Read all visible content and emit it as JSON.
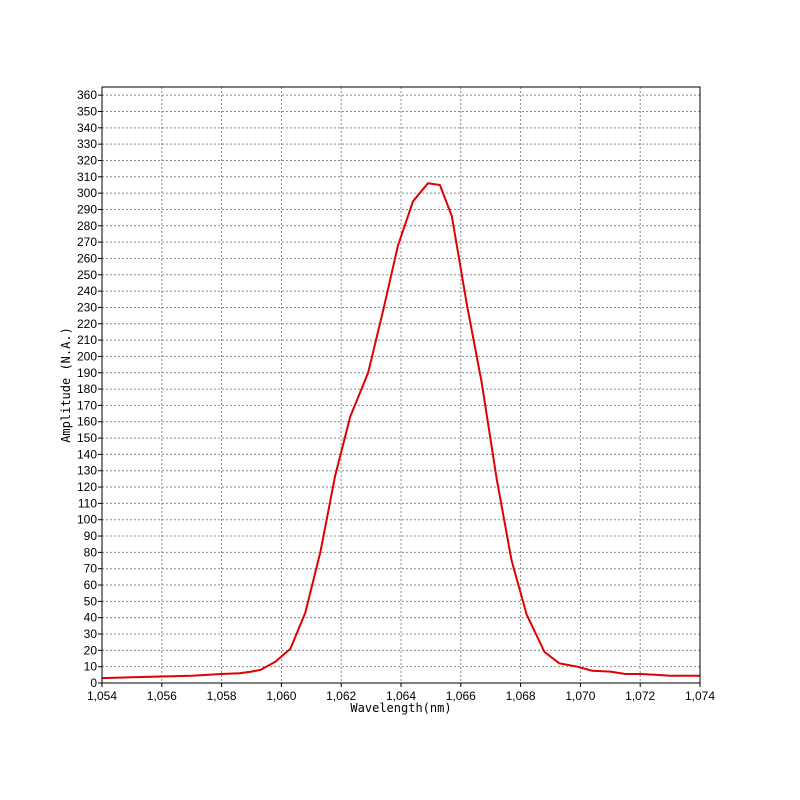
{
  "chart_data": {
    "type": "line",
    "title": "",
    "xlabel": "Wavelength(nm)",
    "ylabel": "Amplitude (N.A.)",
    "xlim": [
      1054,
      1074
    ],
    "ylim": [
      0,
      365
    ],
    "grid": true,
    "x_ticks": [
      1054,
      1056,
      1058,
      1060,
      1062,
      1064,
      1066,
      1068,
      1070,
      1072,
      1074
    ],
    "x_tick_labels": [
      "1,054",
      "1,056",
      "1,058",
      "1,060",
      "1,062",
      "1,064",
      "1,066",
      "1,068",
      "1,070",
      "1,072",
      "1,074"
    ],
    "y_ticks": [
      0,
      10,
      20,
      30,
      40,
      50,
      60,
      70,
      80,
      90,
      100,
      110,
      120,
      130,
      140,
      150,
      160,
      170,
      180,
      190,
      200,
      210,
      220,
      230,
      240,
      250,
      260,
      270,
      280,
      290,
      300,
      310,
      320,
      330,
      340,
      350,
      360
    ],
    "y_tick_labels": [
      "0",
      "10",
      "20",
      "30",
      "40",
      "50",
      "60",
      "70",
      "80",
      "90",
      "100",
      "110",
      "120",
      "130",
      "140",
      "150",
      "160",
      "170",
      "180",
      "190",
      "200",
      "210",
      "220",
      "230",
      "240",
      "250",
      "260",
      "270",
      "280",
      "290",
      "300",
      "310",
      "320",
      "330",
      "340",
      "350",
      "360"
    ],
    "series": [
      {
        "color": "#e00000",
        "x": [
          1054.0,
          1055.0,
          1056.0,
          1057.0,
          1058.0,
          1058.6,
          1059.0,
          1059.3,
          1059.8,
          1060.3,
          1060.8,
          1061.3,
          1061.8,
          1062.3,
          1062.9,
          1063.4,
          1063.9,
          1064.4,
          1064.9,
          1065.3,
          1065.7,
          1066.2,
          1066.7,
          1067.2,
          1067.7,
          1068.2,
          1068.8,
          1069.3,
          1069.9,
          1070.4,
          1071.0,
          1071.5,
          1072.0,
          1072.5,
          1073.0,
          1074.0
        ],
        "y": [
          3,
          3.5,
          4,
          4.5,
          5.5,
          6,
          7,
          8,
          13,
          21,
          43,
          80,
          127,
          163,
          190,
          228,
          268,
          295,
          306,
          305,
          286,
          232,
          184,
          125,
          75,
          42,
          19,
          12,
          10,
          7.5,
          7,
          5.5,
          5.5,
          5,
          4.5,
          4.5
        ]
      }
    ]
  }
}
